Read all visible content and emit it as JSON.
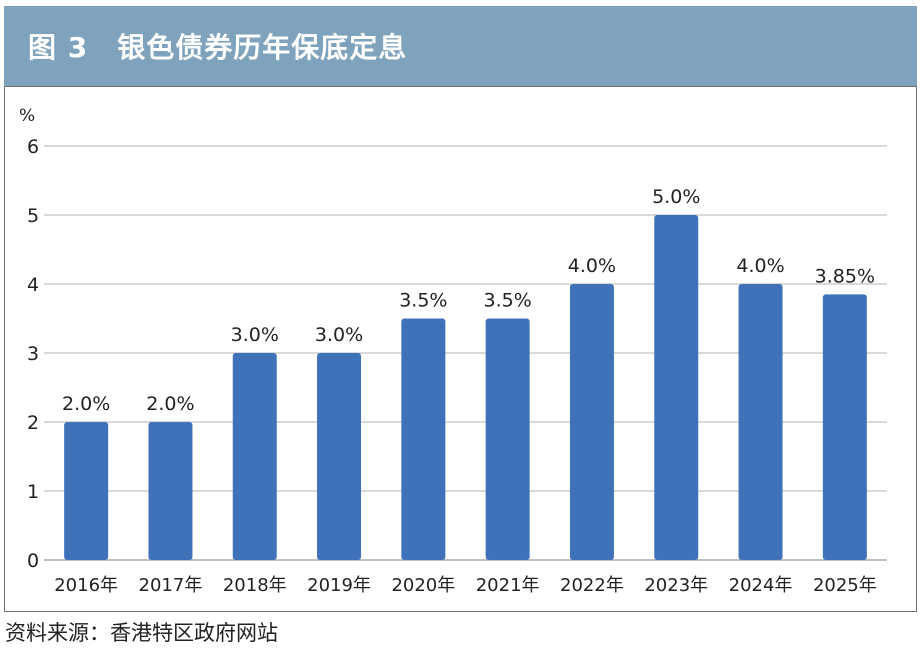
{
  "title": "图 3　银色债券历年保底定息",
  "source": "资料来源：香港特区政府网站",
  "colors": {
    "bar": "#4072b9",
    "title_bg": "#7fa3bd",
    "grid": "#d9d9d9"
  },
  "chart_data": {
    "type": "bar",
    "title": "图 3　银色债券历年保底定息",
    "ylabel": "%",
    "xlabel": "",
    "categories": [
      "2016年",
      "2017年",
      "2018年",
      "2019年",
      "2020年",
      "2021年",
      "2022年",
      "2023年",
      "2024年",
      "2025年"
    ],
    "values": [
      2.0,
      2.0,
      3.0,
      3.0,
      3.5,
      3.5,
      4.0,
      5.0,
      4.0,
      3.85
    ],
    "data_labels": [
      "2.0%",
      "2.0%",
      "3.0%",
      "3.0%",
      "3.5%",
      "3.5%",
      "4.0%",
      "5.0%",
      "4.0%",
      "3.85%"
    ],
    "yticks": [
      "0",
      "1",
      "2",
      "3",
      "4",
      "5",
      "6"
    ],
    "ylim": [
      0,
      6
    ],
    "grid": true,
    "legend": "none"
  }
}
